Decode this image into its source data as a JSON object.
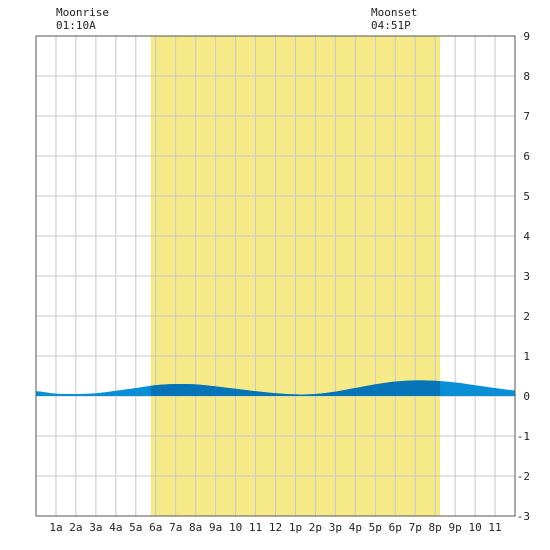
{
  "moonrise": {
    "label": "Moonrise",
    "time": "01:10A"
  },
  "moonset": {
    "label": "Moonset",
    "time": "04:51P"
  },
  "chart_data": {
    "type": "area",
    "title": "",
    "xlabel": "",
    "ylabel": "",
    "x_range_hours": [
      0,
      24
    ],
    "ylim": [
      -3,
      9
    ],
    "y_ticks": [
      "-3",
      "-2",
      "-1",
      "0",
      "1",
      "2",
      "3",
      "4",
      "5",
      "6",
      "7",
      "8",
      "9"
    ],
    "x_tick_labels": [
      "1a",
      "2a",
      "3a",
      "4a",
      "5a",
      "6a",
      "7a",
      "8a",
      "9a",
      "10",
      "11",
      "12",
      "1p",
      "2p",
      "3p",
      "4p",
      "5p",
      "6p",
      "7p",
      "8p",
      "9p",
      "10",
      "11"
    ],
    "daylight_hours": [
      5.75,
      20.25
    ],
    "series": [
      {
        "x": [
          0,
          1,
          2,
          3,
          4,
          5,
          6,
          7,
          8,
          9,
          10,
          11,
          12,
          13,
          14,
          15,
          16,
          17,
          18,
          19,
          20,
          21,
          22,
          23,
          24
        ],
        "y": [
          0.12,
          0.06,
          0.05,
          0.07,
          0.13,
          0.2,
          0.27,
          0.3,
          0.29,
          0.24,
          0.18,
          0.12,
          0.07,
          0.04,
          0.05,
          0.11,
          0.2,
          0.29,
          0.36,
          0.39,
          0.38,
          0.34,
          0.27,
          0.2,
          0.14
        ]
      }
    ],
    "colors": {
      "daylight": "#f5ea87",
      "grid": "#c8c8c8",
      "tide": "#0a8fd6",
      "tide_day": "#0674b6"
    },
    "grid": true
  }
}
